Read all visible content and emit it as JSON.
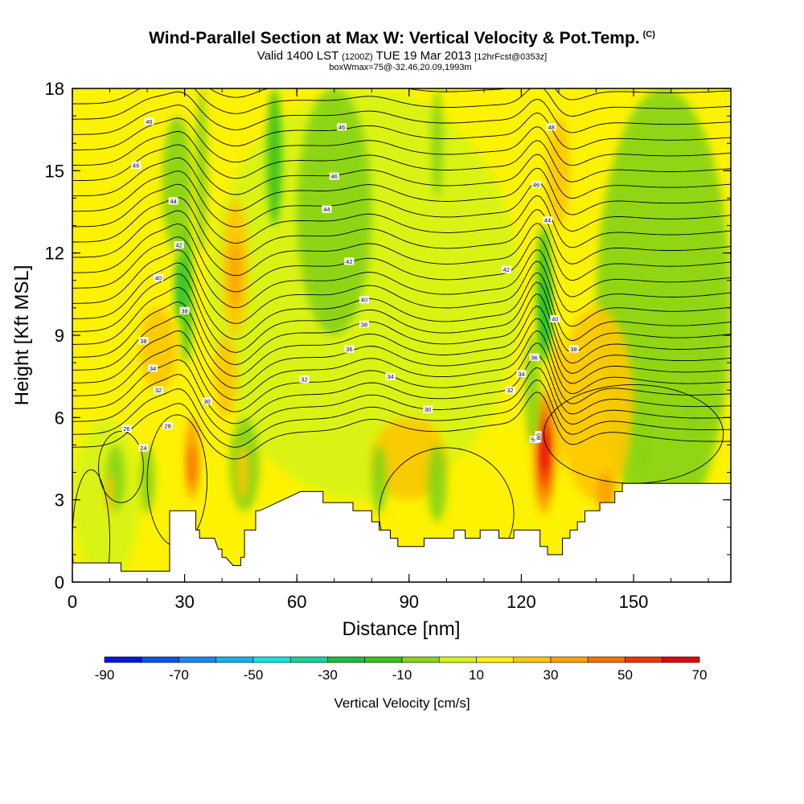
{
  "header": {
    "title": "Wind-Parallel Section at Max W: Vertical Velocity & Pot.Temp.",
    "copyright": "(C)",
    "valid_prefix": "Valid 1400 LST",
    "valid_zulu": "(1200Z)",
    "valid_date": "TUE 19 Mar 2013",
    "forecast": "[12hrFcst@0353z]",
    "box_info": "boxWmax=75@-32.46,20.09,1993m"
  },
  "chart_data": {
    "type": "heatmap",
    "xlabel": "Distance [nm]",
    "ylabel": "Height [Kft MSL]",
    "xlim": [
      0,
      176
    ],
    "ylim": [
      0,
      18
    ],
    "x_ticks": [
      0,
      30,
      60,
      90,
      120,
      150
    ],
    "y_ticks": [
      0,
      3,
      6,
      9,
      12,
      15,
      18
    ],
    "colorbar": {
      "label": "Vertical Velocity [cm/s]",
      "tick_labels": [
        "-90",
        "-70",
        "-50",
        "-30",
        "-10",
        "10",
        "30",
        "50",
        "70"
      ],
      "bins": [
        -90,
        -80,
        -70,
        -60,
        -50,
        -40,
        -30,
        -20,
        -10,
        0,
        10,
        20,
        30,
        40,
        50,
        60,
        70
      ],
      "colors": [
        "#0a14e0",
        "#1050ee",
        "#1a86f2",
        "#10b6f0",
        "#08e8e0",
        "#10d49a",
        "#18c040",
        "#38c21a",
        "#88d412",
        "#d8f412",
        "#fdf200",
        "#fdc800",
        "#fba200",
        "#f87000",
        "#f03400",
        "#e00012"
      ]
    },
    "terrain_kft": {
      "x": [
        0,
        13,
        13,
        26,
        26,
        30,
        30,
        33,
        33,
        34,
        34,
        36,
        38,
        38,
        39,
        40,
        40,
        41,
        43,
        45,
        45,
        46,
        46,
        49,
        49,
        50,
        61,
        67,
        67,
        72,
        72,
        75,
        75,
        79,
        80,
        80,
        82,
        82,
        84,
        85,
        85,
        87,
        87,
        88,
        88,
        94,
        94,
        96,
        99,
        102,
        102,
        105,
        105,
        109,
        109,
        114,
        114,
        118,
        118,
        125,
        125,
        127,
        127,
        128,
        128,
        131,
        131,
        133,
        133,
        135,
        135,
        137,
        137,
        141,
        141,
        145,
        145,
        147,
        147,
        176
      ],
      "y": [
        0.7,
        0.7,
        0.4,
        0.4,
        2.6,
        2.6,
        2.6,
        2.6,
        1.9,
        1.9,
        1.6,
        1.6,
        1.6,
        1.6,
        1.2,
        1.2,
        0.9,
        0.9,
        0.6,
        0.6,
        0.9,
        0.9,
        1.9,
        1.9,
        2.6,
        2.6,
        3.3,
        3.3,
        2.9,
        2.9,
        2.9,
        2.9,
        2.6,
        2.6,
        2.6,
        2.2,
        2.2,
        1.9,
        1.9,
        1.9,
        1.6,
        1.6,
        1.3,
        1.3,
        1.3,
        1.3,
        1.6,
        1.6,
        1.6,
        1.6,
        1.9,
        1.9,
        1.6,
        1.6,
        1.9,
        1.9,
        1.6,
        1.6,
        1.9,
        1.9,
        1.3,
        1.3,
        1.0,
        1.0,
        1.0,
        1.0,
        1.6,
        1.6,
        1.9,
        1.9,
        2.2,
        2.2,
        2.6,
        2.6,
        2.9,
        2.9,
        3.3,
        3.3,
        3.6,
        3.6
      ]
    },
    "theta_labels": [
      {
        "text": "46",
        "x": 20.5,
        "y": 16.8
      },
      {
        "text": "46",
        "x": 72,
        "y": 16.6
      },
      {
        "text": "48",
        "x": 128,
        "y": 16.6
      },
      {
        "text": "46",
        "x": 17,
        "y": 15.2
      },
      {
        "text": "46",
        "x": 70,
        "y": 14.8
      },
      {
        "text": "46",
        "x": 124,
        "y": 14.5
      },
      {
        "text": "44",
        "x": 27,
        "y": 13.9
      },
      {
        "text": "44",
        "x": 68,
        "y": 13.6
      },
      {
        "text": "44",
        "x": 127,
        "y": 13.2
      },
      {
        "text": "42",
        "x": 28.5,
        "y": 12.3
      },
      {
        "text": "42",
        "x": 74,
        "y": 11.7
      },
      {
        "text": "42",
        "x": 116,
        "y": 11.4
      },
      {
        "text": "40",
        "x": 23,
        "y": 11.1
      },
      {
        "text": "40",
        "x": 78,
        "y": 10.3
      },
      {
        "text": "40",
        "x": 129,
        "y": 9.6
      },
      {
        "text": "38",
        "x": 30,
        "y": 9.9
      },
      {
        "text": "38",
        "x": 78,
        "y": 9.4
      },
      {
        "text": "38",
        "x": 19,
        "y": 8.8
      },
      {
        "text": "38",
        "x": 134,
        "y": 8.5
      },
      {
        "text": "36",
        "x": 74,
        "y": 8.5
      },
      {
        "text": "36",
        "x": 123.5,
        "y": 8.2
      },
      {
        "text": "34",
        "x": 21.5,
        "y": 7.8
      },
      {
        "text": "34",
        "x": 85,
        "y": 7.5
      },
      {
        "text": "34",
        "x": 120,
        "y": 7.6
      },
      {
        "text": "32",
        "x": 23,
        "y": 7.0
      },
      {
        "text": "32",
        "x": 62,
        "y": 7.4
      },
      {
        "text": "32",
        "x": 117,
        "y": 7.0
      },
      {
        "text": "30",
        "x": 36,
        "y": 6.6
      },
      {
        "text": "30",
        "x": 95,
        "y": 6.3
      },
      {
        "text": "28",
        "x": 25.5,
        "y": 5.7
      },
      {
        "text": "26",
        "x": 14.5,
        "y": 5.6
      },
      {
        "text": "24",
        "x": 19,
        "y": 4.9
      },
      {
        "text": "50",
        "x": 123.5,
        "y": 5.2
      }
    ],
    "w_label": {
      "text": "80",
      "x": 124.5,
      "y": 5.3
    }
  }
}
